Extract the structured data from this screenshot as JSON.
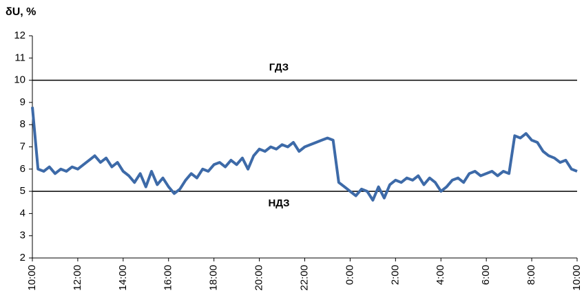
{
  "chart_data": {
    "type": "line",
    "y_label": "δU, %",
    "x": [
      0,
      0.25,
      0.5,
      0.75,
      1,
      1.25,
      1.5,
      1.75,
      2,
      2.25,
      2.5,
      2.75,
      3,
      3.25,
      3.5,
      3.75,
      4,
      4.25,
      4.5,
      4.75,
      5,
      5.25,
      5.5,
      5.75,
      6,
      6.25,
      6.5,
      6.75,
      7,
      7.25,
      7.5,
      7.75,
      8,
      8.25,
      8.5,
      8.75,
      9,
      9.25,
      9.5,
      9.75,
      10,
      10.25,
      10.5,
      10.75,
      11,
      11.25,
      11.5,
      11.75,
      12,
      12.25,
      12.5,
      12.75,
      13,
      13.25,
      13.5,
      13.75,
      14,
      14.25,
      14.5,
      14.75,
      15,
      15.25,
      15.5,
      15.75,
      16,
      16.25,
      16.5,
      16.75,
      17,
      17.25,
      17.5,
      17.75,
      18,
      18.25,
      18.5,
      18.75,
      19,
      19.25,
      19.5,
      19.75,
      20,
      20.25,
      20.5,
      20.75,
      21,
      21.25,
      21.5,
      21.75,
      22,
      22.25,
      22.5,
      22.75,
      23,
      23.25,
      23.5,
      23.75,
      24
    ],
    "series": [
      {
        "color": "#3d6aa8",
        "values": [
          8.8,
          6.0,
          5.9,
          6.1,
          5.8,
          6.0,
          5.9,
          6.1,
          6.0,
          6.2,
          6.4,
          6.6,
          6.3,
          6.5,
          6.1,
          6.3,
          5.9,
          5.7,
          5.4,
          5.8,
          5.2,
          5.9,
          5.3,
          5.6,
          5.2,
          4.9,
          5.1,
          5.5,
          5.8,
          5.6,
          6.0,
          5.9,
          6.2,
          6.3,
          6.1,
          6.4,
          6.2,
          6.5,
          6.0,
          6.6,
          6.9,
          6.8,
          7.0,
          6.9,
          7.1,
          7.0,
          7.2,
          6.8,
          7.0,
          7.1,
          7.2,
          7.3,
          7.4,
          7.3,
          5.4,
          5.2,
          5.0,
          4.8,
          5.1,
          5.0,
          4.6,
          5.2,
          4.7,
          5.3,
          5.5,
          5.4,
          5.6,
          5.5,
          5.7,
          5.3,
          5.6,
          5.4,
          5.0,
          5.2,
          5.5,
          5.6,
          5.4,
          5.8,
          5.9,
          5.7,
          5.8,
          5.9,
          5.7,
          5.9,
          5.8,
          7.5,
          7.4,
          7.6,
          7.3,
          7.2,
          6.8,
          6.6,
          6.5,
          6.3,
          6.4,
          6.0,
          5.9
        ]
      }
    ],
    "xlim": [
      0,
      24
    ],
    "xticks": [
      {
        "value": 0,
        "label": "10:00"
      },
      {
        "value": 2,
        "label": "12:00"
      },
      {
        "value": 4,
        "label": "14:00"
      },
      {
        "value": 6,
        "label": "16:00"
      },
      {
        "value": 8,
        "label": "18:00"
      },
      {
        "value": 10,
        "label": "20:00"
      },
      {
        "value": 12,
        "label": "22:00"
      },
      {
        "value": 14,
        "label": "0:00"
      },
      {
        "value": 16,
        "label": "2:00"
      },
      {
        "value": 18,
        "label": "4:00"
      },
      {
        "value": 20,
        "label": "6:00"
      },
      {
        "value": 22,
        "label": "8:00"
      },
      {
        "value": 24,
        "label": "10:00"
      }
    ],
    "ylim": [
      2,
      12
    ],
    "yticks": [
      2,
      3,
      4,
      5,
      6,
      7,
      8,
      9,
      10,
      11,
      12
    ],
    "reference_lines": [
      {
        "value": 10,
        "label": "ГДЗ"
      },
      {
        "value": 5,
        "label": "НДЗ"
      }
    ]
  }
}
